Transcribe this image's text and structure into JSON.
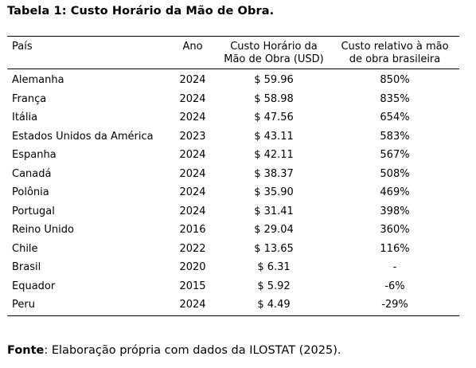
{
  "title": "Tabela 1: Custo Horário da Mão de Obra.",
  "table": {
    "headers": {
      "country": "País",
      "year": "Ano",
      "cost_line1": "Custo Horário da",
      "cost_line2": "Mão de Obra (USD)",
      "rel_line1": "Custo relativo à mão",
      "rel_line2": "de obra brasileira"
    },
    "rows": [
      {
        "country": "Alemanha",
        "year": "2024",
        "cost": "$ 59.96",
        "rel": "850%"
      },
      {
        "country": "França",
        "year": "2024",
        "cost": "$ 58.98",
        "rel": "835%"
      },
      {
        "country": "Itália",
        "year": "2024",
        "cost": "$ 47.56",
        "rel": "654%"
      },
      {
        "country": "Estados Unidos da América",
        "year": "2023",
        "cost": "$ 43.11",
        "rel": "583%"
      },
      {
        "country": "Espanha",
        "year": "2024",
        "cost": "$ 42.11",
        "rel": "567%"
      },
      {
        "country": "Canadá",
        "year": "2024",
        "cost": "$ 38.37",
        "rel": "508%"
      },
      {
        "country": "Polônia",
        "year": "2024",
        "cost": "$ 35.90",
        "rel": "469%"
      },
      {
        "country": "Portugal",
        "year": "2024",
        "cost": "$ 31.41",
        "rel": "398%"
      },
      {
        "country": "Reino Unido",
        "year": "2016",
        "cost": "$ 29.04",
        "rel": "360%"
      },
      {
        "country": "Chile",
        "year": "2022",
        "cost": "$ 13.65",
        "rel": "116%"
      },
      {
        "country": "Brasil",
        "year": "2020",
        "cost": "$ 6.31",
        "rel": "-"
      },
      {
        "country": "Equador",
        "year": "2015",
        "cost": "$ 5.92",
        "rel": "-6%"
      },
      {
        "country": "Peru",
        "year": "2024",
        "cost": "$ 4.49",
        "rel": "-29%"
      }
    ]
  },
  "source": {
    "label": "Fonte",
    "text": ": Elaboração própria com dados da ILOSTAT (2025)."
  }
}
